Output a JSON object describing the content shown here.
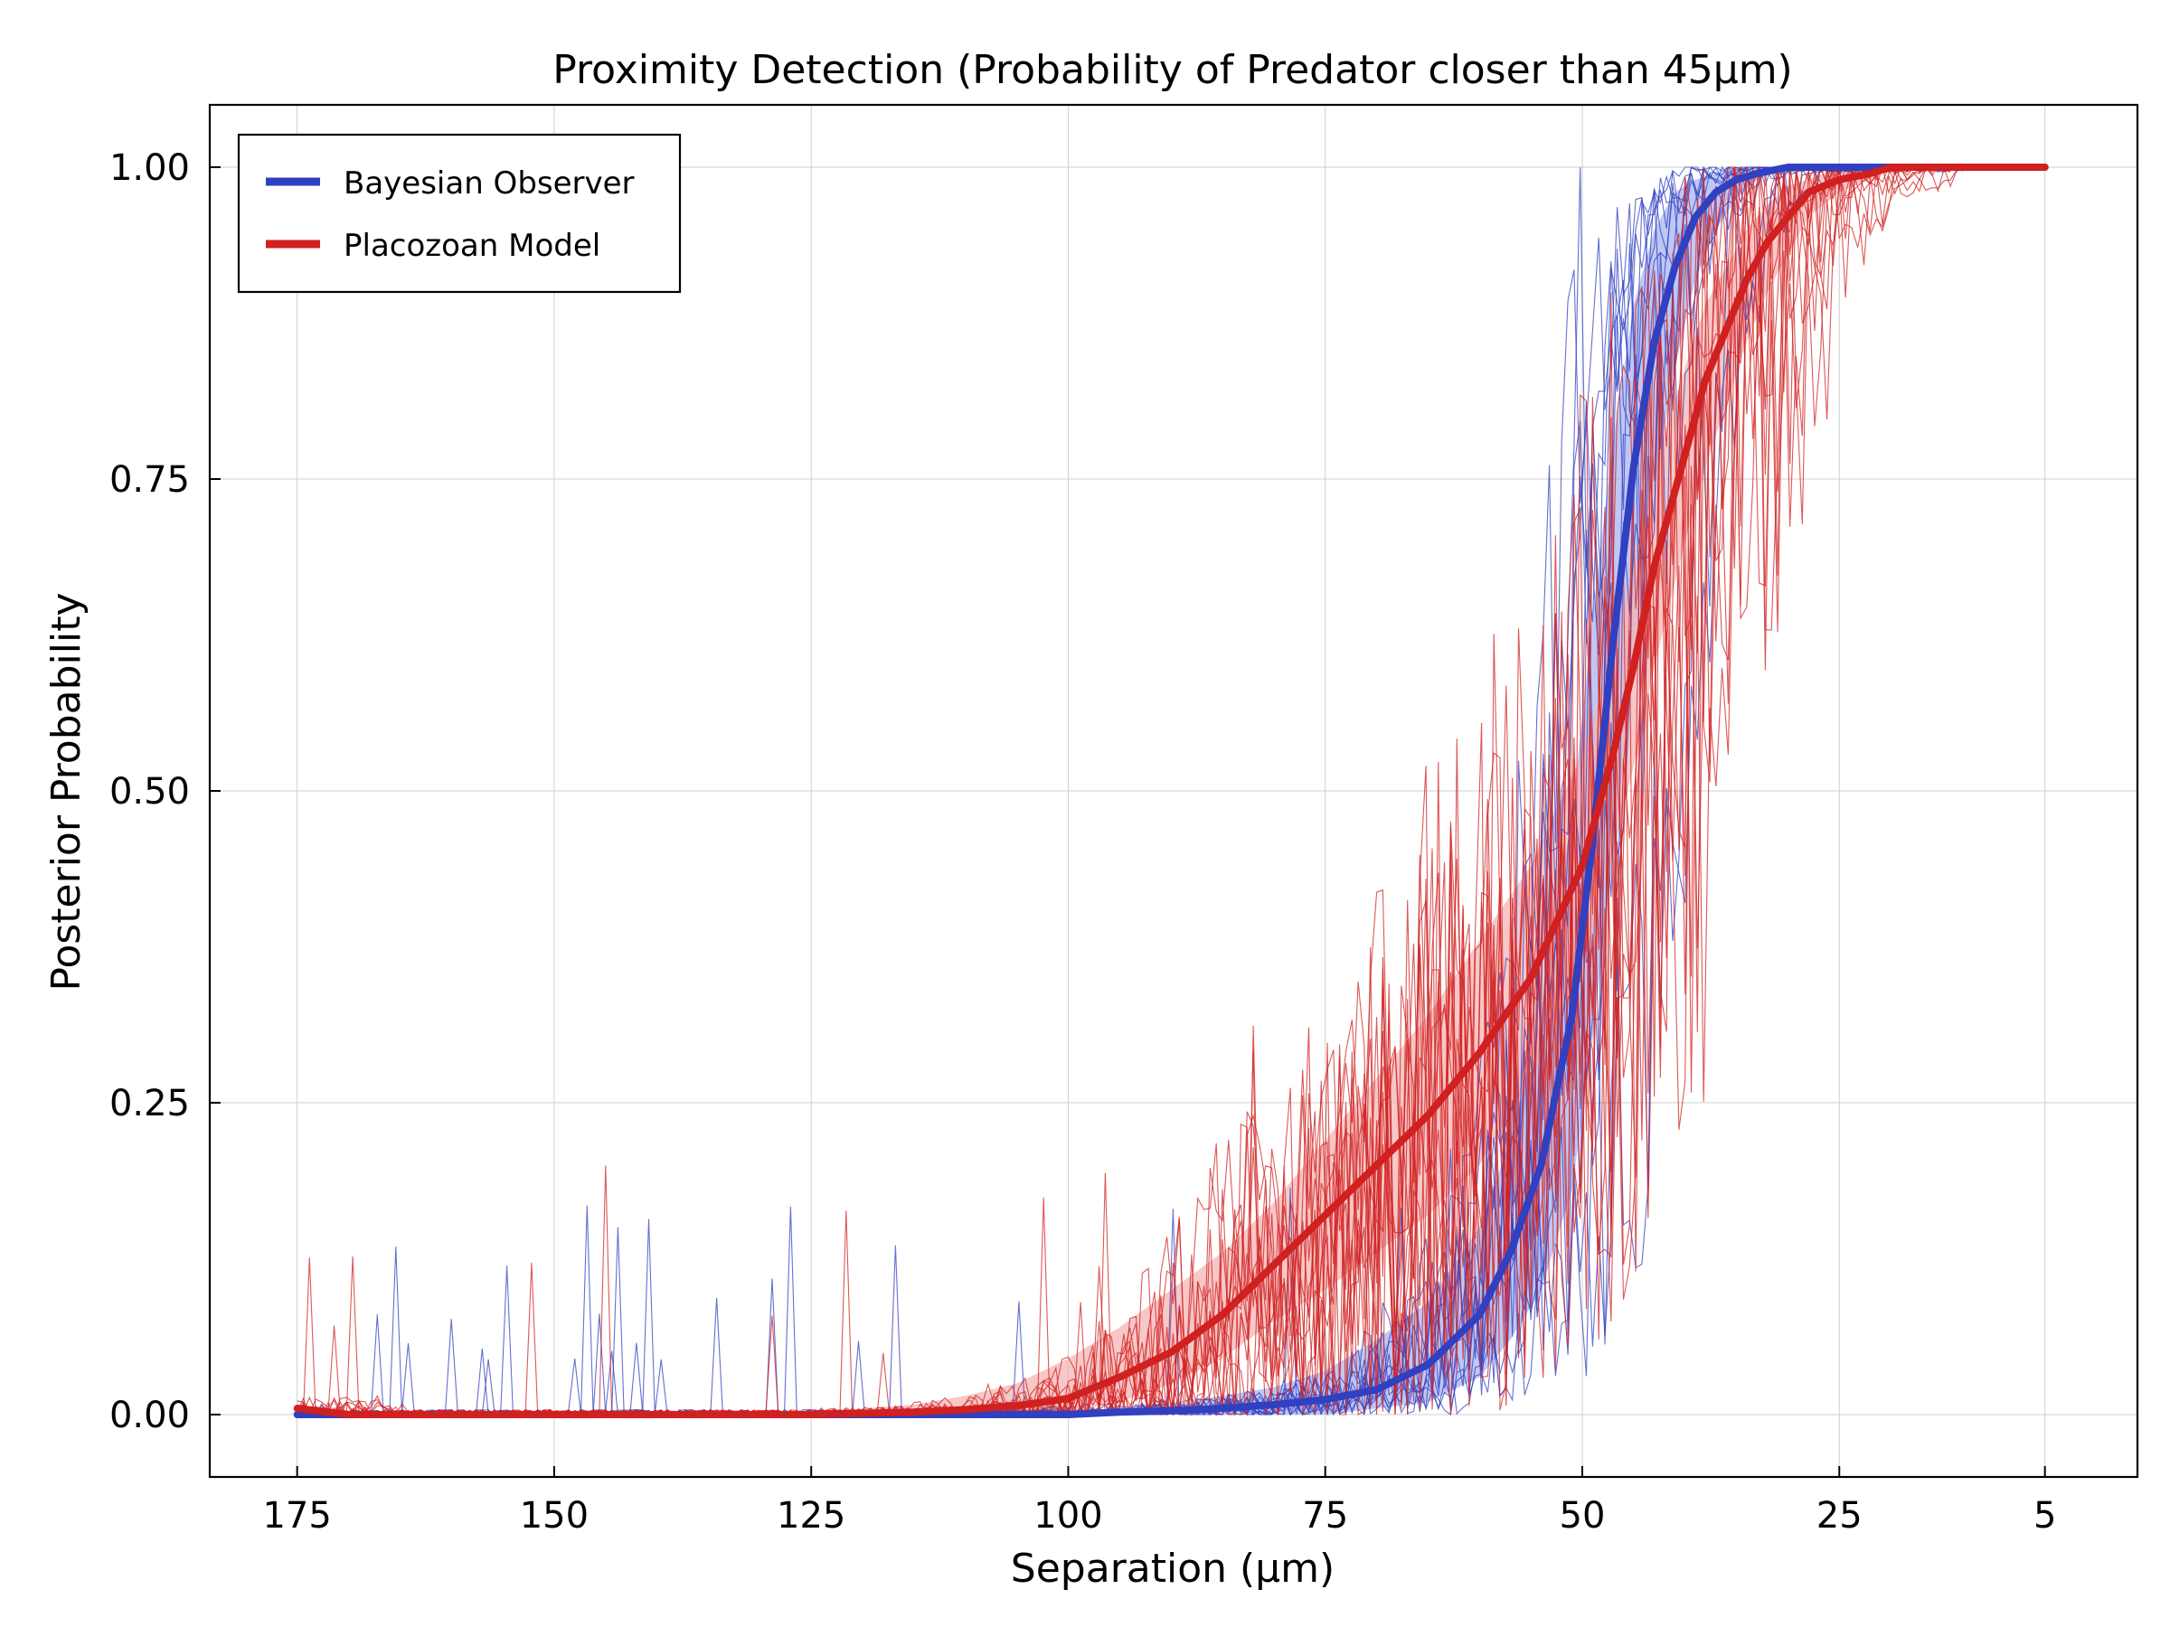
{
  "chart_data": {
    "type": "line",
    "title": "Proximity Detection (Probability of Predator closer than 45μm)",
    "xlabel": "Separation (μm)",
    "ylabel": "Posterior Probability",
    "x_reversed": true,
    "xlim": [
      183.5,
      -4
    ],
    "ylim": [
      -0.05,
      1.05
    ],
    "xticks": [
      175,
      150,
      125,
      100,
      75,
      50,
      25,
      5
    ],
    "xtick_labels": [
      "175",
      "150",
      "125",
      "100",
      "75",
      "50",
      "25",
      "5"
    ],
    "yticks": [
      0.0,
      0.25,
      0.5,
      0.75,
      1.0
    ],
    "ytick_labels": [
      "0.00",
      "0.25",
      "0.50",
      "0.75",
      "1.00"
    ],
    "grid": true,
    "legend_position": "top-left",
    "series": [
      {
        "name": "Bayesian Observer",
        "color": "#3040c0",
        "band_color": "#aab4f0",
        "x": [
          175,
          170,
          165,
          160,
          155,
          150,
          145,
          140,
          135,
          130,
          125,
          120,
          115,
          110,
          105,
          100,
          95,
          90,
          85,
          80,
          75,
          70,
          65,
          60,
          57,
          54,
          51,
          49,
          47,
          45,
          43,
          41,
          39,
          37,
          35,
          33,
          30,
          25,
          20,
          15,
          10,
          5
        ],
        "values": [
          0.0,
          0.0,
          0.0,
          0.0,
          0.0,
          0.0,
          0.0,
          0.0,
          0.0,
          0.0,
          0.0,
          0.0,
          0.0,
          0.0,
          0.0,
          0.0,
          0.002,
          0.003,
          0.005,
          0.008,
          0.012,
          0.02,
          0.04,
          0.08,
          0.13,
          0.2,
          0.32,
          0.46,
          0.62,
          0.76,
          0.86,
          0.92,
          0.96,
          0.98,
          0.99,
          0.995,
          1.0,
          1.0,
          1.0,
          1.0,
          1.0,
          1.0
        ],
        "band_low": [
          0.0,
          0.0,
          0.0,
          0.0,
          0.0,
          0.0,
          0.0,
          0.0,
          0.0,
          0.0,
          0.0,
          0.0,
          0.0,
          0.0,
          0.0,
          0.0,
          0.0,
          0.0,
          0.0,
          0.0,
          0.0,
          0.005,
          0.01,
          0.03,
          0.06,
          0.1,
          0.18,
          0.3,
          0.45,
          0.6,
          0.74,
          0.84,
          0.91,
          0.95,
          0.975,
          0.99,
          1.0,
          1.0,
          1.0,
          1.0,
          1.0,
          1.0
        ],
        "band_high": [
          0.0,
          0.0,
          0.0,
          0.0,
          0.0,
          0.0,
          0.0,
          0.0,
          0.0,
          0.0,
          0.0,
          0.0,
          0.0,
          0.0,
          0.0,
          0.0,
          0.006,
          0.01,
          0.015,
          0.022,
          0.035,
          0.06,
          0.09,
          0.15,
          0.22,
          0.32,
          0.48,
          0.64,
          0.78,
          0.89,
          0.95,
          0.98,
          0.99,
          0.995,
          1.0,
          1.0,
          1.0,
          1.0,
          1.0,
          1.0,
          1.0,
          1.0
        ]
      },
      {
        "name": "Placozoan Model",
        "color": "#d02020",
        "band_color": "#f6b4b4",
        "x": [
          175,
          170,
          165,
          160,
          155,
          150,
          145,
          140,
          135,
          130,
          125,
          120,
          115,
          110,
          105,
          100,
          95,
          90,
          85,
          80,
          75,
          70,
          65,
          60,
          55,
          50,
          47,
          45,
          43,
          40,
          38,
          36,
          34,
          32,
          30,
          28,
          25,
          22,
          20,
          15,
          10,
          5
        ],
        "values": [
          0.005,
          0.0,
          0.0,
          0.0,
          0.0,
          0.0,
          0.0,
          0.0,
          0.0,
          0.0,
          0.0,
          0.001,
          0.002,
          0.004,
          0.007,
          0.013,
          0.03,
          0.05,
          0.08,
          0.12,
          0.16,
          0.2,
          0.24,
          0.29,
          0.35,
          0.44,
          0.53,
          0.6,
          0.68,
          0.77,
          0.83,
          0.87,
          0.91,
          0.94,
          0.96,
          0.98,
          0.99,
          0.995,
          1.0,
          1.0,
          1.0,
          1.0
        ],
        "band_low": [
          0.0,
          0.0,
          0.0,
          0.0,
          0.0,
          0.0,
          0.0,
          0.0,
          0.0,
          0.0,
          0.0,
          0.0,
          0.0,
          0.0,
          0.0,
          0.002,
          0.01,
          0.025,
          0.045,
          0.075,
          0.1,
          0.13,
          0.16,
          0.2,
          0.27,
          0.36,
          0.45,
          0.52,
          0.6,
          0.7,
          0.76,
          0.81,
          0.86,
          0.9,
          0.93,
          0.96,
          0.98,
          0.99,
          1.0,
          1.0,
          1.0,
          1.0
        ],
        "band_high": [
          0.006,
          0.003,
          0.002,
          0.002,
          0.002,
          0.002,
          0.002,
          0.002,
          0.002,
          0.002,
          0.003,
          0.005,
          0.008,
          0.015,
          0.025,
          0.045,
          0.07,
          0.1,
          0.13,
          0.17,
          0.22,
          0.27,
          0.32,
          0.38,
          0.44,
          0.53,
          0.61,
          0.68,
          0.76,
          0.84,
          0.89,
          0.92,
          0.95,
          0.97,
          0.985,
          0.99,
          1.0,
          1.0,
          1.0,
          1.0,
          1.0,
          1.0
        ]
      }
    ],
    "individual_traces_per_series": 12
  }
}
